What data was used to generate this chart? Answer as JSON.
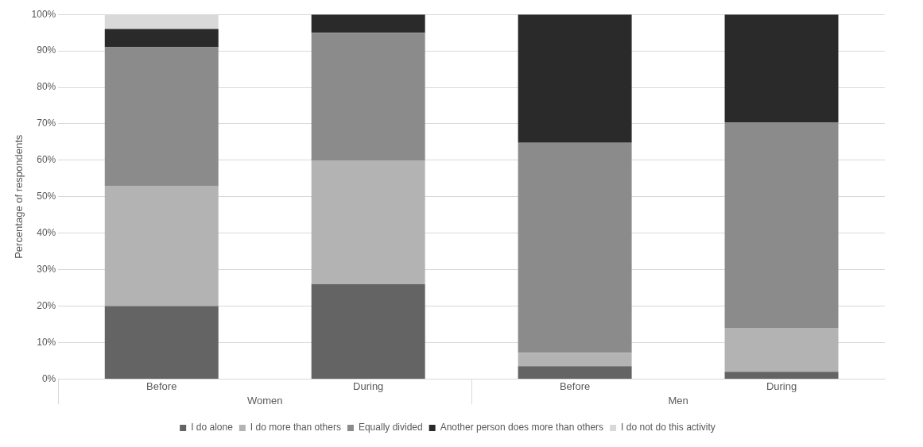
{
  "chart_data": {
    "type": "bar",
    "stacked": true,
    "ylabel": "Percentage of respondents",
    "categories": [
      "Before",
      "During",
      "Before",
      "During"
    ],
    "annotations": [
      "Women",
      "Men"
    ],
    "series": [
      {
        "name": "I do alone",
        "color": "#646464",
        "values": [
          20,
          26,
          3.5,
          2
        ]
      },
      {
        "name": "I do more than others",
        "color": "#b3b3b3",
        "values": [
          33,
          34,
          3.7,
          12
        ]
      },
      {
        "name": "Equally divided",
        "color": "#8b8b8b",
        "values": [
          38,
          35,
          57.6,
          56.4
        ]
      },
      {
        "name": "Another person does more than others",
        "color": "#2a2a2a",
        "values": [
          5,
          5,
          35.2,
          29.6
        ]
      },
      {
        "name": "I do not do this activity",
        "color": "#d9d9d9",
        "values": [
          4,
          0,
          0,
          0
        ]
      }
    ],
    "ylim": [
      0,
      100
    ],
    "yticks": [
      {
        "value": 0,
        "label": "0%"
      },
      {
        "value": 10,
        "label": "10%"
      },
      {
        "value": 20,
        "label": "20%"
      },
      {
        "value": 30,
        "label": "30%"
      },
      {
        "value": 40,
        "label": "40%"
      },
      {
        "value": 50,
        "label": "50%"
      },
      {
        "value": 60,
        "label": "60%"
      },
      {
        "value": 70,
        "label": "70%"
      },
      {
        "value": 80,
        "label": "80%"
      },
      {
        "value": 90,
        "label": "90%"
      },
      {
        "value": 100,
        "label": "100%"
      }
    ],
    "grid": "y",
    "legend": "bottom"
  }
}
